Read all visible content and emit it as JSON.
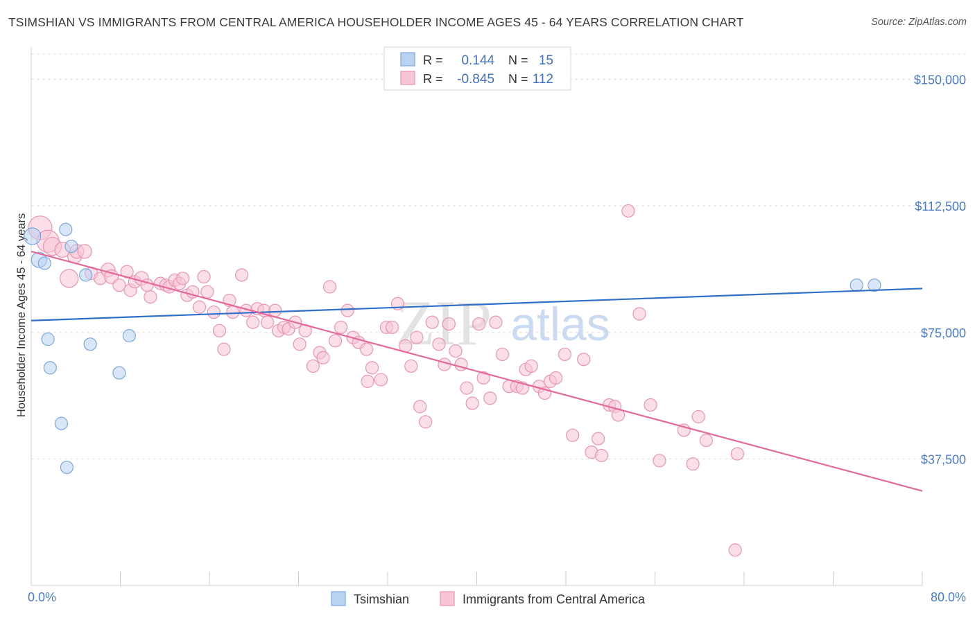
{
  "title": "TSIMSHIAN VS IMMIGRANTS FROM CENTRAL AMERICA HOUSEHOLDER INCOME AGES 45 - 64 YEARS CORRELATION CHART",
  "source": "Source: ZipAtlas.com",
  "watermark": {
    "zip": "ZIP",
    "atlas": "atlas"
  },
  "colors": {
    "blue_fill": "#b9d2f2",
    "blue_stroke": "#7aa6df",
    "blue_line": "#2f6fc8",
    "pink_fill": "#f7c5d5",
    "pink_stroke": "#ea94b1",
    "pink_line": "#e4699a",
    "axis_label": "#4a7cc7",
    "grid": "#dddddd"
  },
  "legend": {
    "rows": [
      {
        "r_label": "R =",
        "r_value": "0.144",
        "n_label": "N =",
        "n_value": "15"
      },
      {
        "r_label": "R =",
        "r_value": "-0.845",
        "n_label": "N =",
        "n_value": "112"
      }
    ]
  },
  "bottom_legend": [
    "Tsimshian",
    "Immigrants from Central America"
  ],
  "chart_data": {
    "type": "scatter",
    "title": "TSIMSHIAN VS IMMIGRANTS FROM CENTRAL AMERICA HOUSEHOLDER INCOME AGES 45 - 64 YEARS CORRELATION CHART",
    "ylabel": "Householder Income Ages 45 - 64 years",
    "xlabel": "",
    "xlim": [
      0,
      80
    ],
    "ylim": [
      0,
      157500
    ],
    "x_tick_labels": [
      "0.0%",
      "80.0%"
    ],
    "y_ticks": [
      37500,
      75000,
      112500,
      150000
    ],
    "y_tick_labels": [
      "$37,500",
      "$75,000",
      "$112,500",
      "$150,000"
    ],
    "grid": "horizontal dashed",
    "legend_position": "top-center",
    "series": [
      {
        "name": "Tsimshian",
        "r": 0.144,
        "n": 15,
        "trend": {
          "x": [
            0,
            80
          ],
          "y": [
            78500,
            88000
          ]
        },
        "points": [
          [
            0.1,
            103500,
            12
          ],
          [
            0.7,
            96500,
            11
          ],
          [
            1.2,
            95500,
            9
          ],
          [
            3.1,
            105500,
            9
          ],
          [
            3.6,
            100500,
            9
          ],
          [
            4.9,
            92000,
            9
          ],
          [
            1.5,
            73000,
            9
          ],
          [
            5.3,
            71500,
            9
          ],
          [
            8.8,
            74000,
            9
          ],
          [
            1.7,
            64500,
            9
          ],
          [
            7.9,
            63000,
            9
          ],
          [
            2.7,
            48000,
            9
          ],
          [
            3.2,
            35000,
            9
          ],
          [
            74.1,
            89000,
            9
          ],
          [
            75.7,
            89000,
            9
          ]
        ]
      },
      {
        "name": "Immigrants from Central America",
        "r": -0.845,
        "n": 112,
        "trend": {
          "x": [
            0,
            80
          ],
          "y": [
            99000,
            28000
          ]
        },
        "points": [
          [
            0.8,
            106000,
            17
          ],
          [
            1.5,
            102000,
            16
          ],
          [
            1.9,
            100500,
            13
          ],
          [
            2.8,
            99500,
            11
          ],
          [
            3.9,
            97500,
            10
          ],
          [
            4.1,
            99000,
            10
          ],
          [
            4.8,
            99000,
            10
          ],
          [
            3.4,
            91000,
            13
          ],
          [
            5.4,
            92500,
            9
          ],
          [
            6.2,
            91000,
            9
          ],
          [
            6.9,
            93500,
            10
          ],
          [
            7.2,
            91500,
            10
          ],
          [
            7.9,
            89000,
            9
          ],
          [
            8.6,
            93000,
            9
          ],
          [
            8.9,
            87500,
            9
          ],
          [
            9.3,
            90000,
            9
          ],
          [
            9.9,
            91000,
            10
          ],
          [
            10.4,
            89000,
            9
          ],
          [
            10.7,
            85500,
            9
          ],
          [
            11.6,
            89500,
            9
          ],
          [
            12.1,
            89000,
            9
          ],
          [
            12.4,
            88500,
            9
          ],
          [
            12.9,
            90500,
            9
          ],
          [
            13.3,
            89500,
            9
          ],
          [
            13.6,
            91000,
            9
          ],
          [
            14.0,
            86000,
            9
          ],
          [
            14.5,
            87000,
            9
          ],
          [
            15.1,
            82500,
            9
          ],
          [
            15.5,
            91500,
            9
          ],
          [
            15.8,
            87000,
            9
          ],
          [
            16.4,
            81000,
            9
          ],
          [
            16.9,
            75500,
            9
          ],
          [
            17.3,
            70000,
            9
          ],
          [
            17.8,
            84500,
            9
          ],
          [
            18.1,
            81000,
            9
          ],
          [
            18.9,
            92000,
            9
          ],
          [
            19.3,
            81500,
            9
          ],
          [
            19.9,
            78000,
            9
          ],
          [
            20.3,
            82000,
            9
          ],
          [
            20.9,
            81500,
            9
          ],
          [
            21.2,
            78000,
            9
          ],
          [
            21.9,
            81500,
            9
          ],
          [
            22.2,
            75500,
            9
          ],
          [
            22.7,
            76500,
            9
          ],
          [
            23.1,
            76000,
            9
          ],
          [
            23.7,
            78000,
            9
          ],
          [
            24.1,
            71500,
            9
          ],
          [
            24.6,
            75500,
            9
          ],
          [
            25.3,
            65000,
            9
          ],
          [
            25.9,
            69000,
            9
          ],
          [
            26.2,
            67500,
            9
          ],
          [
            26.8,
            88500,
            9
          ],
          [
            27.3,
            72500,
            9
          ],
          [
            27.8,
            76500,
            9
          ],
          [
            28.4,
            81500,
            9
          ],
          [
            28.9,
            73500,
            9
          ],
          [
            29.4,
            72000,
            9
          ],
          [
            30.1,
            70000,
            9
          ],
          [
            30.6,
            64500,
            9
          ],
          [
            30.2,
            60500,
            9
          ],
          [
            31.4,
            61000,
            9
          ],
          [
            31.9,
            76500,
            9
          ],
          [
            32.4,
            76500,
            9
          ],
          [
            32.9,
            83500,
            9
          ],
          [
            33.6,
            71000,
            9
          ],
          [
            34.1,
            65000,
            9
          ],
          [
            34.6,
            73500,
            9
          ],
          [
            34.9,
            53000,
            9
          ],
          [
            35.4,
            48500,
            9
          ],
          [
            36.0,
            78000,
            9
          ],
          [
            36.6,
            71500,
            9
          ],
          [
            37.1,
            65500,
            9
          ],
          [
            37.5,
            77500,
            9
          ],
          [
            38.1,
            69500,
            9
          ],
          [
            38.6,
            65500,
            9
          ],
          [
            39.1,
            58500,
            9
          ],
          [
            39.6,
            54000,
            9
          ],
          [
            40.2,
            77500,
            9
          ],
          [
            40.6,
            61500,
            9
          ],
          [
            41.2,
            55500,
            9
          ],
          [
            41.7,
            78000,
            9
          ],
          [
            42.3,
            68500,
            9
          ],
          [
            42.9,
            59000,
            9
          ],
          [
            43.6,
            59000,
            9
          ],
          [
            44.1,
            58500,
            9
          ],
          [
            44.4,
            64000,
            9
          ],
          [
            44.9,
            65000,
            9
          ],
          [
            45.6,
            59000,
            9
          ],
          [
            46.1,
            57000,
            9
          ],
          [
            46.6,
            60500,
            9
          ],
          [
            47.1,
            61500,
            9
          ],
          [
            47.9,
            68500,
            9
          ],
          [
            48.6,
            44500,
            9
          ],
          [
            49.6,
            67000,
            9
          ],
          [
            50.3,
            39500,
            9
          ],
          [
            50.9,
            43500,
            9
          ],
          [
            51.2,
            38500,
            9
          ],
          [
            51.9,
            53500,
            9
          ],
          [
            52.4,
            53000,
            9
          ],
          [
            52.7,
            50500,
            9
          ],
          [
            53.6,
            111000,
            9
          ],
          [
            54.6,
            80500,
            9
          ],
          [
            55.6,
            53500,
            9
          ],
          [
            56.4,
            37000,
            9
          ],
          [
            58.6,
            46000,
            9
          ],
          [
            59.4,
            36000,
            9
          ],
          [
            59.9,
            50000,
            9
          ],
          [
            60.6,
            43000,
            9
          ],
          [
            63.4,
            39000,
            9
          ],
          [
            63.2,
            10500,
            9
          ]
        ]
      }
    ]
  }
}
